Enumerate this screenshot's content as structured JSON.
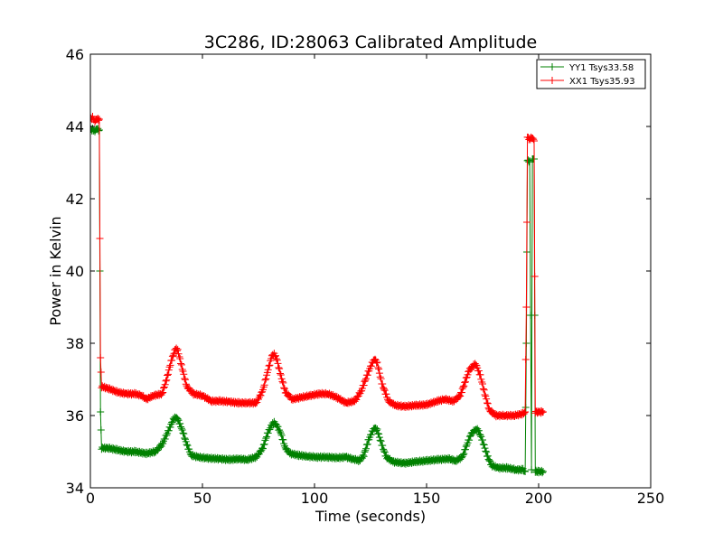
{
  "chart_data": {
    "type": "line",
    "title": "3C286, ID:28063 Calibrated Amplitude",
    "xlabel": "Time (seconds)",
    "ylabel": "Power in Kelvin",
    "xlim": [
      0,
      250
    ],
    "ylim": [
      34,
      46
    ],
    "xticks": [
      0,
      50,
      100,
      150,
      200,
      250
    ],
    "yticks": [
      34,
      36,
      38,
      40,
      42,
      44,
      46
    ],
    "grid": false,
    "legend_position": "top-right",
    "marker": "plus",
    "series": [
      {
        "name": "YY1 Tsys33.58",
        "color": "#008000",
        "points": [
          [
            0,
            43.9
          ],
          [
            1,
            43.92
          ],
          [
            2,
            43.88
          ],
          [
            3,
            43.93
          ],
          [
            4,
            43.9
          ],
          [
            4.5,
            36.1
          ],
          [
            5,
            35.1
          ],
          [
            8,
            35.1
          ],
          [
            12,
            35.05
          ],
          [
            16,
            35.0
          ],
          [
            20,
            35.0
          ],
          [
            25,
            34.95
          ],
          [
            29,
            35.0
          ],
          [
            32,
            35.2
          ],
          [
            35,
            35.6
          ],
          [
            37,
            35.9
          ],
          [
            38,
            35.95
          ],
          [
            39,
            35.9
          ],
          [
            41,
            35.6
          ],
          [
            43,
            35.2
          ],
          [
            45,
            34.9
          ],
          [
            48,
            34.85
          ],
          [
            52,
            34.82
          ],
          [
            58,
            34.8
          ],
          [
            62,
            34.78
          ],
          [
            66,
            34.8
          ],
          [
            70,
            34.78
          ],
          [
            74,
            34.85
          ],
          [
            77,
            35.1
          ],
          [
            79,
            35.5
          ],
          [
            81,
            35.75
          ],
          [
            82,
            35.8
          ],
          [
            83,
            35.75
          ],
          [
            85,
            35.5
          ],
          [
            87,
            35.1
          ],
          [
            89,
            34.95
          ],
          [
            93,
            34.9
          ],
          [
            97,
            34.87
          ],
          [
            101,
            34.85
          ],
          [
            106,
            34.85
          ],
          [
            110,
            34.83
          ],
          [
            114,
            34.85
          ],
          [
            117,
            34.8
          ],
          [
            120,
            34.75
          ],
          [
            122,
            34.9
          ],
          [
            124,
            35.3
          ],
          [
            126,
            35.6
          ],
          [
            127,
            35.65
          ],
          [
            128,
            35.6
          ],
          [
            130,
            35.2
          ],
          [
            132,
            34.85
          ],
          [
            135,
            34.72
          ],
          [
            140,
            34.68
          ],
          [
            145,
            34.72
          ],
          [
            150,
            34.75
          ],
          [
            155,
            34.78
          ],
          [
            160,
            34.8
          ],
          [
            163,
            34.75
          ],
          [
            166,
            34.85
          ],
          [
            168,
            35.2
          ],
          [
            170,
            35.5
          ],
          [
            172,
            35.62
          ],
          [
            173,
            35.6
          ],
          [
            175,
            35.3
          ],
          [
            177,
            34.9
          ],
          [
            179,
            34.62
          ],
          [
            182,
            34.55
          ],
          [
            186,
            34.55
          ],
          [
            190,
            34.5
          ],
          [
            193,
            34.5
          ],
          [
            194,
            34.45
          ],
          [
            194.5,
            38.0
          ],
          [
            195,
            43.05
          ],
          [
            196,
            43.05
          ],
          [
            196.8,
            34.5
          ],
          [
            197.2,
            43.1
          ],
          [
            198,
            43.1
          ],
          [
            198.5,
            34.45
          ],
          [
            200,
            34.45
          ],
          [
            202,
            34.45
          ]
        ]
      },
      {
        "name": "XX1 Tsys35.93",
        "color": "#ff0000",
        "points": [
          [
            0,
            44.2
          ],
          [
            1,
            44.25
          ],
          [
            2,
            44.15
          ],
          [
            3,
            44.2
          ],
          [
            4,
            44.2
          ],
          [
            4.5,
            37.6
          ],
          [
            5,
            36.8
          ],
          [
            8,
            36.75
          ],
          [
            12,
            36.65
          ],
          [
            16,
            36.6
          ],
          [
            20,
            36.6
          ],
          [
            23,
            36.55
          ],
          [
            25,
            36.45
          ],
          [
            28,
            36.55
          ],
          [
            32,
            36.6
          ],
          [
            34,
            37.0
          ],
          [
            36,
            37.5
          ],
          [
            38,
            37.85
          ],
          [
            39,
            37.8
          ],
          [
            41,
            37.3
          ],
          [
            43,
            36.8
          ],
          [
            46,
            36.6
          ],
          [
            50,
            36.55
          ],
          [
            54,
            36.4
          ],
          [
            58,
            36.4
          ],
          [
            62,
            36.38
          ],
          [
            66,
            36.35
          ],
          [
            70,
            36.35
          ],
          [
            74,
            36.35
          ],
          [
            77,
            36.7
          ],
          [
            79,
            37.2
          ],
          [
            81,
            37.65
          ],
          [
            82,
            37.7
          ],
          [
            83,
            37.6
          ],
          [
            85,
            37.1
          ],
          [
            87,
            36.65
          ],
          [
            90,
            36.45
          ],
          [
            94,
            36.5
          ],
          [
            98,
            36.55
          ],
          [
            102,
            36.6
          ],
          [
            106,
            36.6
          ],
          [
            110,
            36.5
          ],
          [
            114,
            36.35
          ],
          [
            118,
            36.4
          ],
          [
            121,
            36.7
          ],
          [
            124,
            37.2
          ],
          [
            126,
            37.5
          ],
          [
            127,
            37.55
          ],
          [
            128,
            37.45
          ],
          [
            130,
            36.9
          ],
          [
            133,
            36.4
          ],
          [
            136,
            36.28
          ],
          [
            140,
            36.25
          ],
          [
            145,
            36.28
          ],
          [
            150,
            36.3
          ],
          [
            155,
            36.4
          ],
          [
            158,
            36.45
          ],
          [
            162,
            36.4
          ],
          [
            165,
            36.55
          ],
          [
            167,
            36.9
          ],
          [
            169,
            37.25
          ],
          [
            171,
            37.4
          ],
          [
            172,
            37.42
          ],
          [
            174,
            37.1
          ],
          [
            176,
            36.6
          ],
          [
            178,
            36.15
          ],
          [
            181,
            36.0
          ],
          [
            185,
            36.0
          ],
          [
            189,
            36.0
          ],
          [
            193,
            36.05
          ],
          [
            194,
            36.1
          ],
          [
            194.5,
            39.0
          ],
          [
            195,
            43.7
          ],
          [
            196,
            43.65
          ],
          [
            197,
            43.7
          ],
          [
            198,
            43.6
          ],
          [
            198.5,
            36.1
          ],
          [
            200,
            36.1
          ],
          [
            202,
            36.1
          ]
        ]
      }
    ]
  }
}
